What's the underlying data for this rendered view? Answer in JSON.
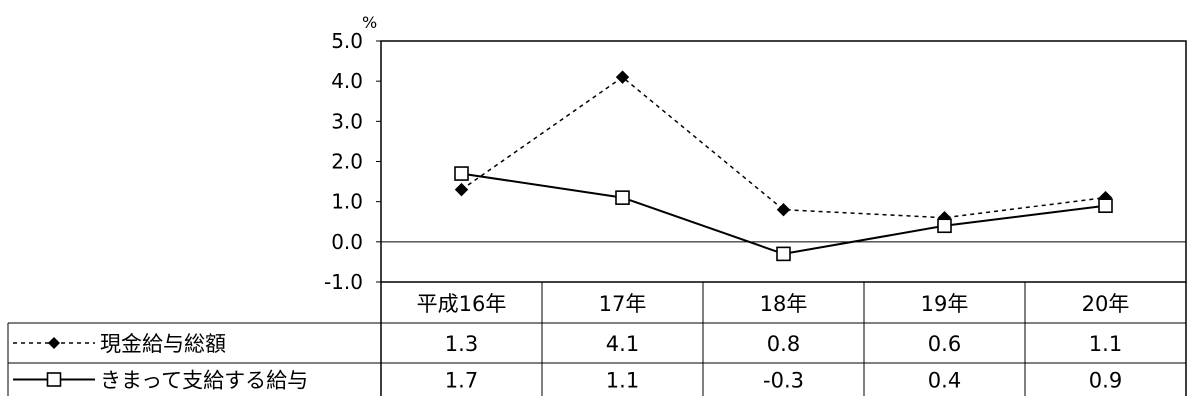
{
  "chart_data": {
    "type": "line",
    "unit": "%",
    "categories": [
      "平成16年",
      "17年",
      "18年",
      "19年",
      "20年"
    ],
    "series": [
      {
        "name": "現金給与総額",
        "values": [
          1.3,
          4.1,
          0.8,
          0.6,
          1.1
        ],
        "value_labels": [
          "1.3",
          "4.1",
          "0.8",
          "0.6",
          "1.1"
        ],
        "line_style": "dashed",
        "marker": "filled-diamond",
        "color": "#000000"
      },
      {
        "name": "きまって支給する給与",
        "values": [
          1.7,
          1.1,
          -0.3,
          0.4,
          0.9
        ],
        "value_labels": [
          "1.7",
          "1.1",
          "-0.3",
          "0.4",
          "0.9"
        ],
        "line_style": "solid",
        "marker": "open-square",
        "color": "#000000"
      }
    ],
    "ylim": [
      -1.0,
      5.0
    ],
    "yticks": [
      "5.0",
      "4.0",
      "3.0",
      "2.0",
      "1.0",
      "0.0",
      "-1.0"
    ],
    "ytick_values": [
      5.0,
      4.0,
      3.0,
      2.0,
      1.0,
      0.0,
      -1.0
    ],
    "grid": false,
    "zero_line": true,
    "data_table": true,
    "legend": "in-data-table"
  }
}
